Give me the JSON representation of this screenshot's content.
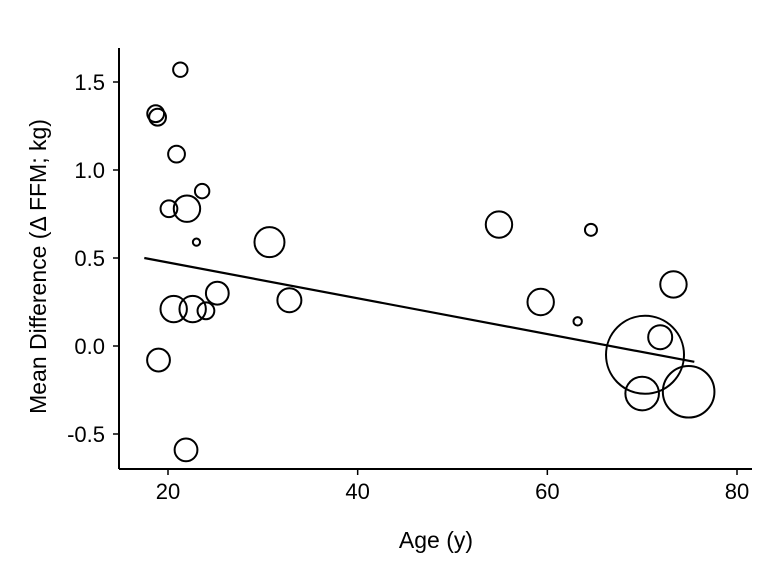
{
  "chart_data": {
    "type": "scatter",
    "xlabel": "Age (y)",
    "ylabel": "Mean Difference (Δ FFM; kg)",
    "xlim": [
      15,
      82
    ],
    "ylim": [
      -0.7,
      1.7
    ],
    "xticks": [
      20,
      40,
      60,
      80
    ],
    "yticks": [
      -0.5,
      0.0,
      0.5,
      1.0,
      1.5
    ],
    "ytick_labels": [
      "-0.5",
      "0.0",
      "0.5",
      "1.0",
      "1.5"
    ],
    "grid": false,
    "legend": "none",
    "marker": "open-circle-sized-by-weight",
    "points": [
      {
        "x": 21.3,
        "y": 1.57,
        "w": 1.2
      },
      {
        "x": 18.7,
        "y": 1.32,
        "w": 1.4
      },
      {
        "x": 18.9,
        "y": 1.3,
        "w": 1.4
      },
      {
        "x": 20.9,
        "y": 1.09,
        "w": 1.4
      },
      {
        "x": 23.6,
        "y": 0.88,
        "w": 1.2
      },
      {
        "x": 20.1,
        "y": 0.78,
        "w": 1.4
      },
      {
        "x": 22.0,
        "y": 0.78,
        "w": 2.2
      },
      {
        "x": 23.0,
        "y": 0.59,
        "w": 0.6
      },
      {
        "x": 30.7,
        "y": 0.59,
        "w": 2.5
      },
      {
        "x": 54.9,
        "y": 0.69,
        "w": 2.2
      },
      {
        "x": 64.6,
        "y": 0.66,
        "w": 1.0
      },
      {
        "x": 20.6,
        "y": 0.21,
        "w": 2.2
      },
      {
        "x": 22.6,
        "y": 0.21,
        "w": 2.2
      },
      {
        "x": 24.0,
        "y": 0.2,
        "w": 1.4
      },
      {
        "x": 25.2,
        "y": 0.3,
        "w": 1.9
      },
      {
        "x": 32.8,
        "y": 0.26,
        "w": 2.0
      },
      {
        "x": 59.3,
        "y": 0.25,
        "w": 2.2
      },
      {
        "x": 63.2,
        "y": 0.14,
        "w": 0.7
      },
      {
        "x": 73.3,
        "y": 0.35,
        "w": 2.2
      },
      {
        "x": 71.9,
        "y": 0.05,
        "w": 2.0
      },
      {
        "x": 19.0,
        "y": -0.08,
        "w": 1.9
      },
      {
        "x": 70.3,
        "y": -0.05,
        "w": 6.5
      },
      {
        "x": 70.0,
        "y": -0.27,
        "w": 2.8
      },
      {
        "x": 74.9,
        "y": -0.26,
        "w": 4.3
      },
      {
        "x": 21.9,
        "y": -0.59,
        "w": 1.9
      }
    ],
    "trendline": {
      "x": [
        17.5,
        75.5
      ],
      "y": [
        0.5,
        -0.09
      ]
    }
  }
}
